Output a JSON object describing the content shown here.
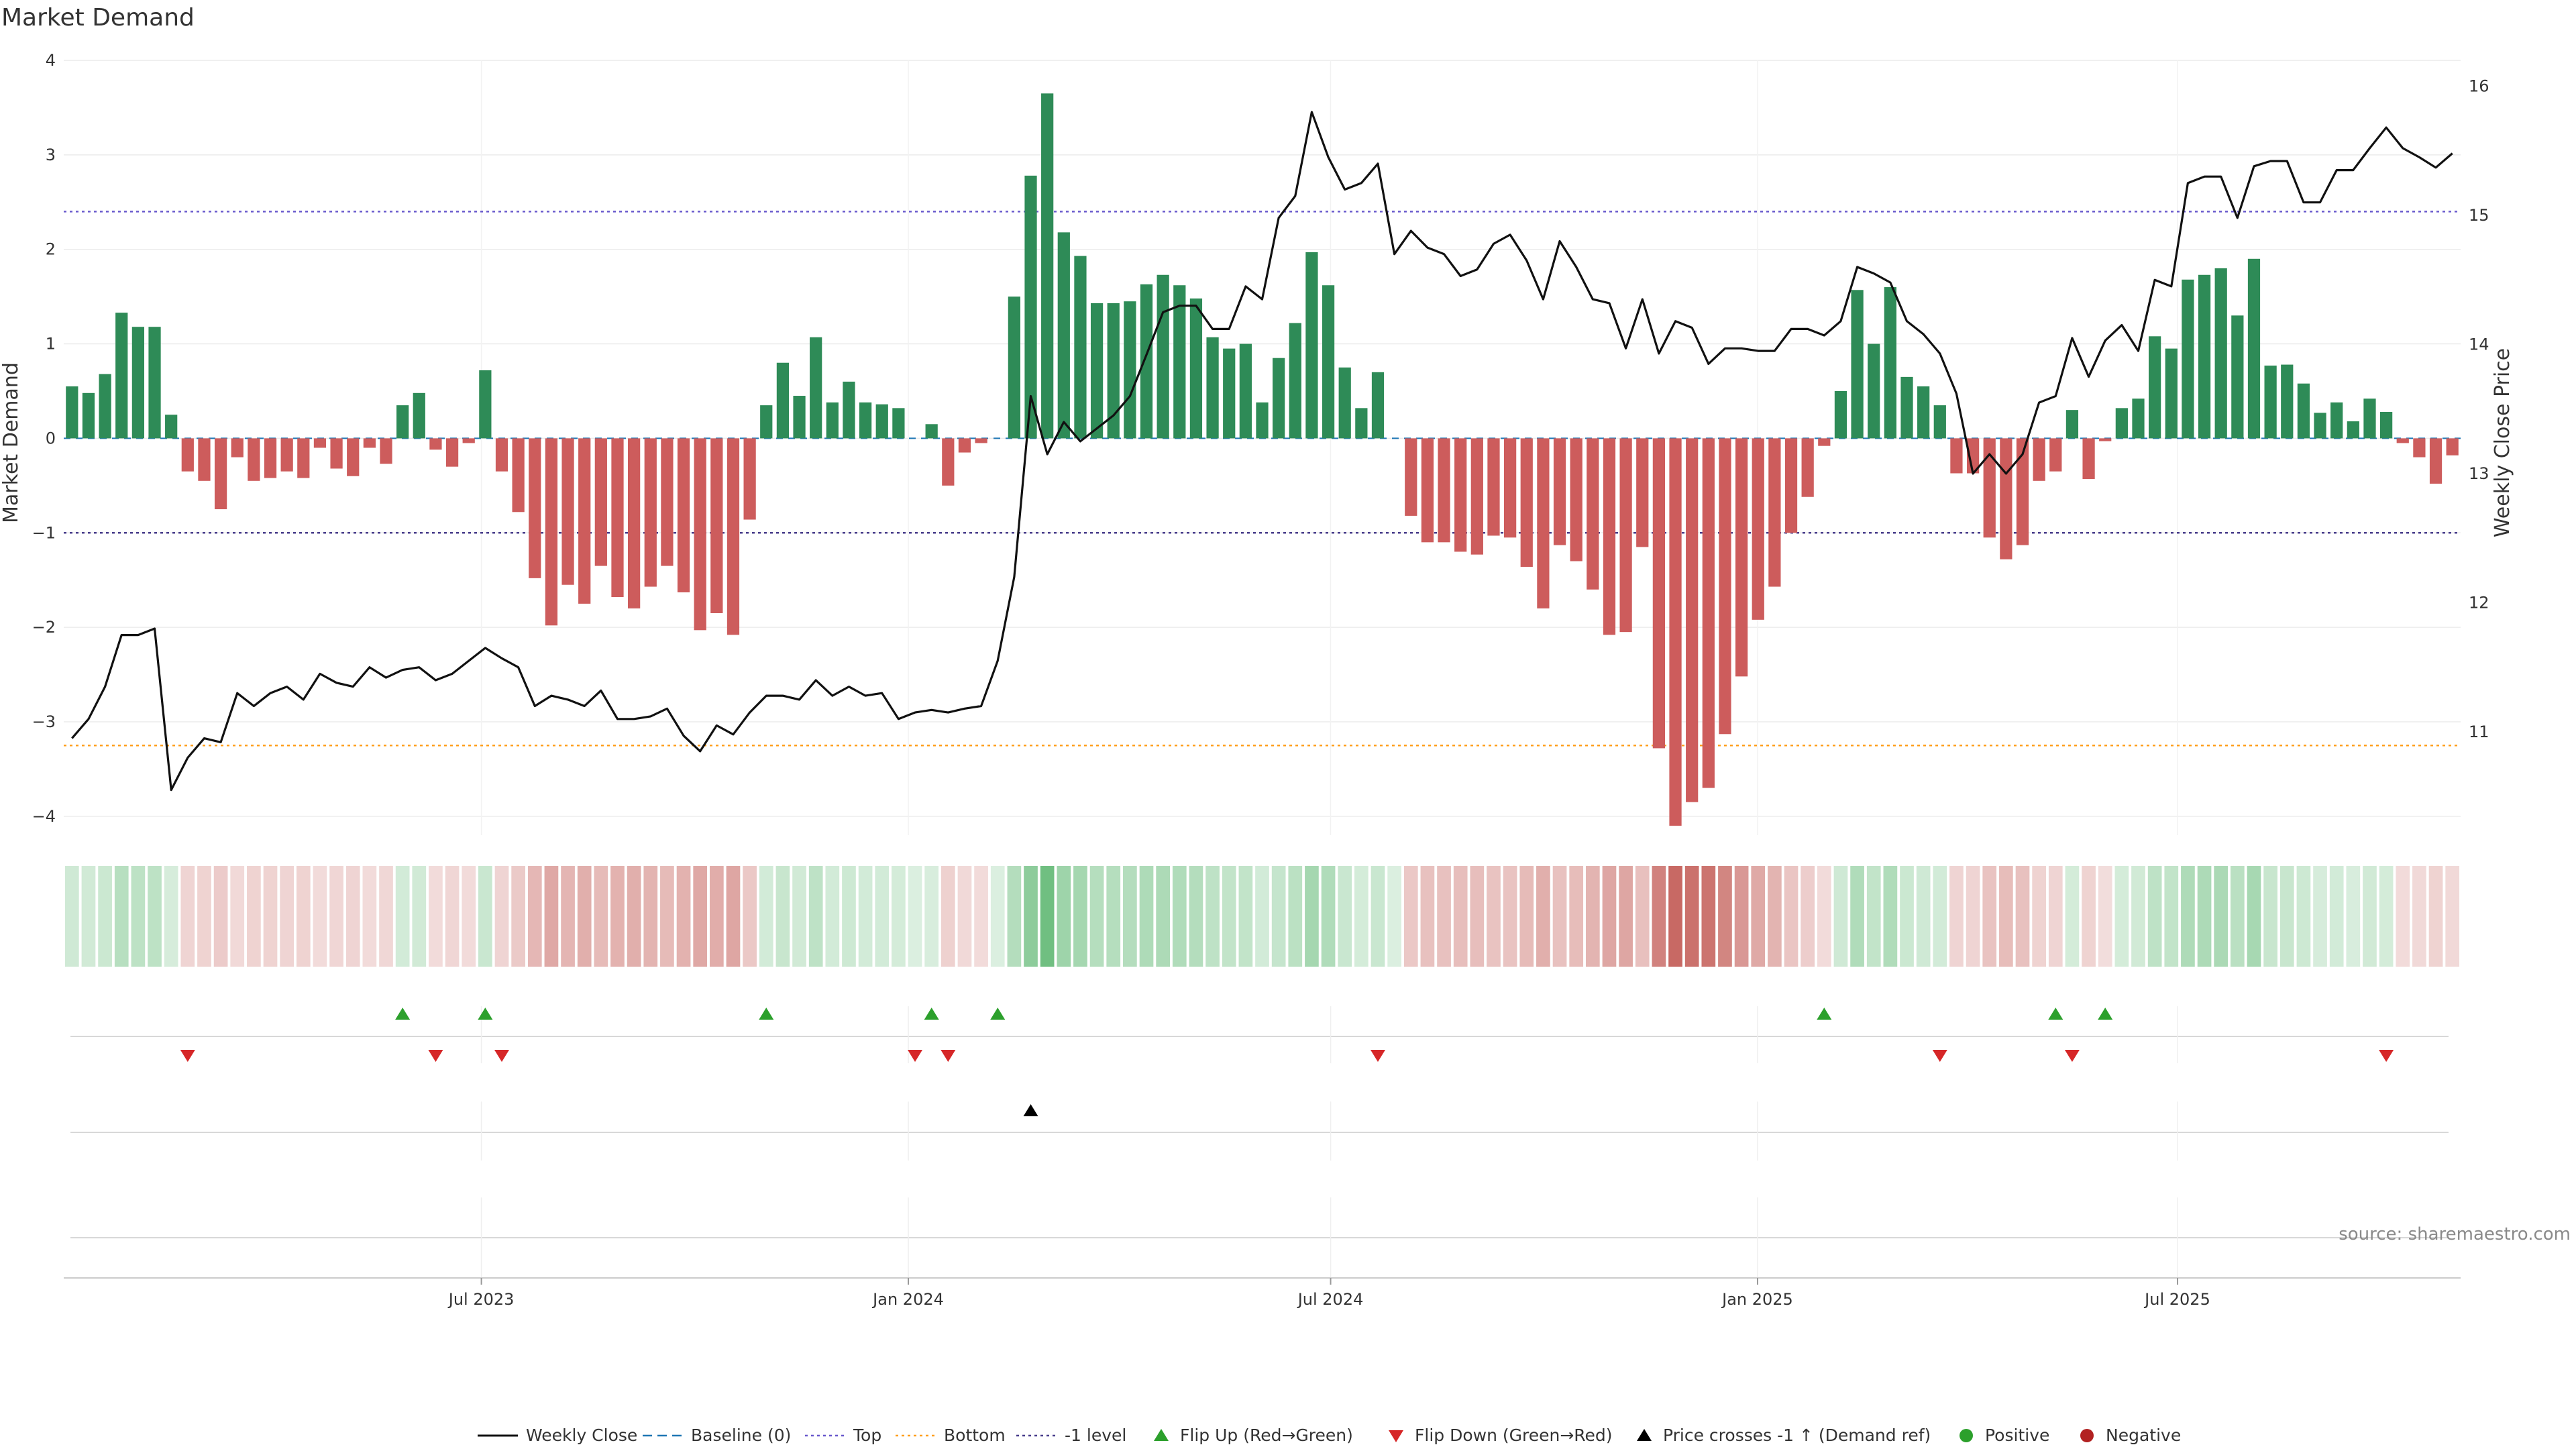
{
  "chart_data": {
    "type": "bar+line",
    "title": "Market Demand",
    "ylabel_left": "Market Demand",
    "ylabel_right": "Weekly Close Price",
    "ylim_left": [
      -4.2,
      4
    ],
    "ylim_right": [
      10.2,
      16.2
    ],
    "yticks_left": [
      -4,
      -3,
      -2,
      -1,
      0,
      1,
      2,
      3,
      4
    ],
    "yticks_left_labels": [
      "−4",
      "−3",
      "−2",
      "−1",
      "0",
      "1",
      "2",
      "3",
      "4"
    ],
    "yticks_right": [
      11,
      12,
      13,
      14,
      15,
      16
    ],
    "yticks_right_labels": [
      "11",
      "12",
      "13",
      "14",
      "15",
      "16"
    ],
    "x_start": "2023-01-02",
    "x_end": "2025-10-31",
    "xticks": [
      {
        "date": "2023-07-01",
        "label": "Jul 2023"
      },
      {
        "date": "2024-01-01",
        "label": "Jan 2024"
      },
      {
        "date": "2024-07-01",
        "label": "Jul 2024"
      },
      {
        "date": "2025-01-01",
        "label": "Jan 2025"
      },
      {
        "date": "2025-07-01",
        "label": "Jul 2025"
      }
    ],
    "reference_lines": {
      "baseline": 0,
      "top": 2.4,
      "bottom": -3.25,
      "minus_one": -1
    },
    "demand": [
      0.55,
      0.48,
      0.68,
      1.33,
      1.18,
      1.18,
      0.25,
      -0.35,
      -0.45,
      -0.75,
      -0.2,
      -0.45,
      -0.42,
      -0.35,
      -0.42,
      -0.1,
      -0.32,
      -0.4,
      -0.1,
      -0.27,
      0.35,
      0.48,
      -0.12,
      -0.3,
      -0.05,
      0.72,
      -0.35,
      -0.78,
      -1.48,
      -1.98,
      -1.55,
      -1.75,
      -1.35,
      -1.68,
      -1.8,
      -1.57,
      -1.35,
      -1.63,
      -2.03,
      -1.85,
      -2.08,
      -0.86,
      0.35,
      0.8,
      0.45,
      1.07,
      0.38,
      0.6,
      0.38,
      0.36,
      0.32,
      0.0,
      0.15,
      -0.5,
      -0.15,
      -0.05,
      0.0,
      1.5,
      2.78,
      3.65,
      2.18,
      1.93,
      1.43,
      1.43,
      1.45,
      1.63,
      1.73,
      1.62,
      1.48,
      1.07,
      0.95,
      1.0,
      0.38,
      0.85,
      1.22,
      1.97,
      1.62,
      0.75,
      0.32,
      0.7,
      0.0,
      -0.82,
      -1.1,
      -1.1,
      -1.2,
      -1.23,
      -1.03,
      -1.05,
      -1.36,
      -1.8,
      -1.13,
      -1.3,
      -1.6,
      -2.08,
      -2.05,
      -1.15,
      -3.28,
      -4.1,
      -3.85,
      -3.7,
      -3.13,
      -2.52,
      -1.92,
      -1.57,
      -1.0,
      -0.62,
      -0.08,
      0.5,
      1.57,
      1.0,
      1.6,
      0.65,
      0.55,
      0.35,
      -0.37,
      -0.37,
      -1.05,
      -1.28,
      -1.13,
      -0.45,
      -0.35,
      0.3,
      -0.43,
      -0.03,
      0.32,
      0.42,
      1.08,
      0.95,
      1.68,
      1.73,
      1.8,
      1.3,
      1.9,
      0.77,
      0.78,
      0.58,
      0.27,
      0.38,
      0.18,
      0.42,
      0.28,
      -0.05,
      -0.2,
      -0.48,
      -0.18
    ],
    "weekly_close": [
      10.95,
      11.1,
      11.35,
      11.75,
      11.75,
      11.8,
      10.55,
      10.8,
      10.95,
      10.92,
      11.3,
      11.2,
      11.3,
      11.35,
      11.25,
      11.45,
      11.38,
      11.35,
      11.5,
      11.42,
      11.48,
      11.5,
      11.4,
      11.45,
      11.55,
      11.65,
      11.57,
      11.5,
      11.2,
      11.28,
      11.25,
      11.2,
      11.32,
      11.1,
      11.1,
      11.12,
      11.18,
      10.97,
      10.85,
      11.05,
      10.98,
      11.15,
      11.28,
      11.28,
      11.25,
      11.4,
      11.28,
      11.35,
      11.28,
      11.3,
      11.1,
      11.15,
      11.17,
      11.15,
      11.18,
      11.2,
      11.55,
      12.2,
      13.6,
      13.15,
      13.4,
      13.25,
      13.35,
      13.45,
      13.6,
      13.92,
      14.25,
      14.3,
      14.3,
      14.12,
      14.12,
      14.45,
      14.35,
      14.98,
      15.15,
      15.8,
      15.45,
      15.2,
      15.25,
      15.4,
      14.7,
      14.88,
      14.75,
      14.7,
      14.53,
      14.58,
      14.78,
      14.85,
      14.65,
      14.35,
      14.8,
      14.6,
      14.35,
      14.32,
      13.97,
      14.35,
      13.93,
      14.18,
      14.13,
      13.85,
      13.97,
      13.97,
      13.95,
      13.95,
      14.12,
      14.12,
      14.07,
      14.18,
      14.6,
      14.55,
      14.48,
      14.18,
      14.08,
      13.93,
      13.62,
      13.0,
      13.15,
      13.0,
      13.15,
      13.55,
      13.6,
      14.05,
      13.75,
      14.03,
      14.15,
      13.95,
      14.5,
      14.45,
      15.25,
      15.3,
      15.3,
      14.98,
      15.38,
      15.42,
      15.42,
      15.1,
      15.1,
      15.35,
      15.35,
      15.52,
      15.68,
      15.52,
      15.45,
      15.37,
      15.48
    ],
    "shading": {
      "positive_color": "#4caf62",
      "negative_color": "#c0544e",
      "min_alpha": 0.2,
      "max_alpha": 1.0
    },
    "flip_up_weeks": [
      20,
      25,
      42,
      52,
      56,
      106,
      120,
      123
    ],
    "flip_down_weeks": [
      7,
      22,
      26,
      51,
      53,
      79,
      113,
      121,
      140
    ],
    "price_cross_weeks": [
      58
    ],
    "colors": {
      "positive": "#2e8b57",
      "negative": "#cd5c5c",
      "line": "#111111",
      "baseline": "#1f77b4",
      "top": "#6a5acd",
      "bottom": "#ff9f1c",
      "minus_one": "#483d8b",
      "flip_up": "#2ca02c",
      "flip_down": "#d62728",
      "cross": "#000000",
      "positive_dot": "#2ca02c",
      "negative_dot": "#b22222"
    },
    "source": "source: sharemaestro.com",
    "legend": [
      {
        "label": "Weekly Close",
        "marker": "line",
        "color": "#111111"
      },
      {
        "label": "Baseline (0)",
        "marker": "dashed",
        "color": "#1f77b4"
      },
      {
        "label": "Top",
        "marker": "dotted",
        "color": "#6a5acd"
      },
      {
        "label": "Bottom",
        "marker": "dotted",
        "color": "#ff9f1c"
      },
      {
        "label": "-1 level",
        "marker": "dotted",
        "color": "#483d8b"
      },
      {
        "label": "Flip Up (Red→Green)",
        "marker": "triangle-up",
        "color": "#2ca02c"
      },
      {
        "label": "Flip Down (Green→Red)",
        "marker": "triangle-down",
        "color": "#d62728"
      },
      {
        "label": "Price crosses -1 ↑ (Demand ref)",
        "marker": "triangle-up",
        "color": "#000000"
      },
      {
        "label": "Positive",
        "marker": "dot",
        "color": "#2ca02c"
      },
      {
        "label": "Negative",
        "marker": "dot",
        "color": "#b22222"
      }
    ]
  }
}
